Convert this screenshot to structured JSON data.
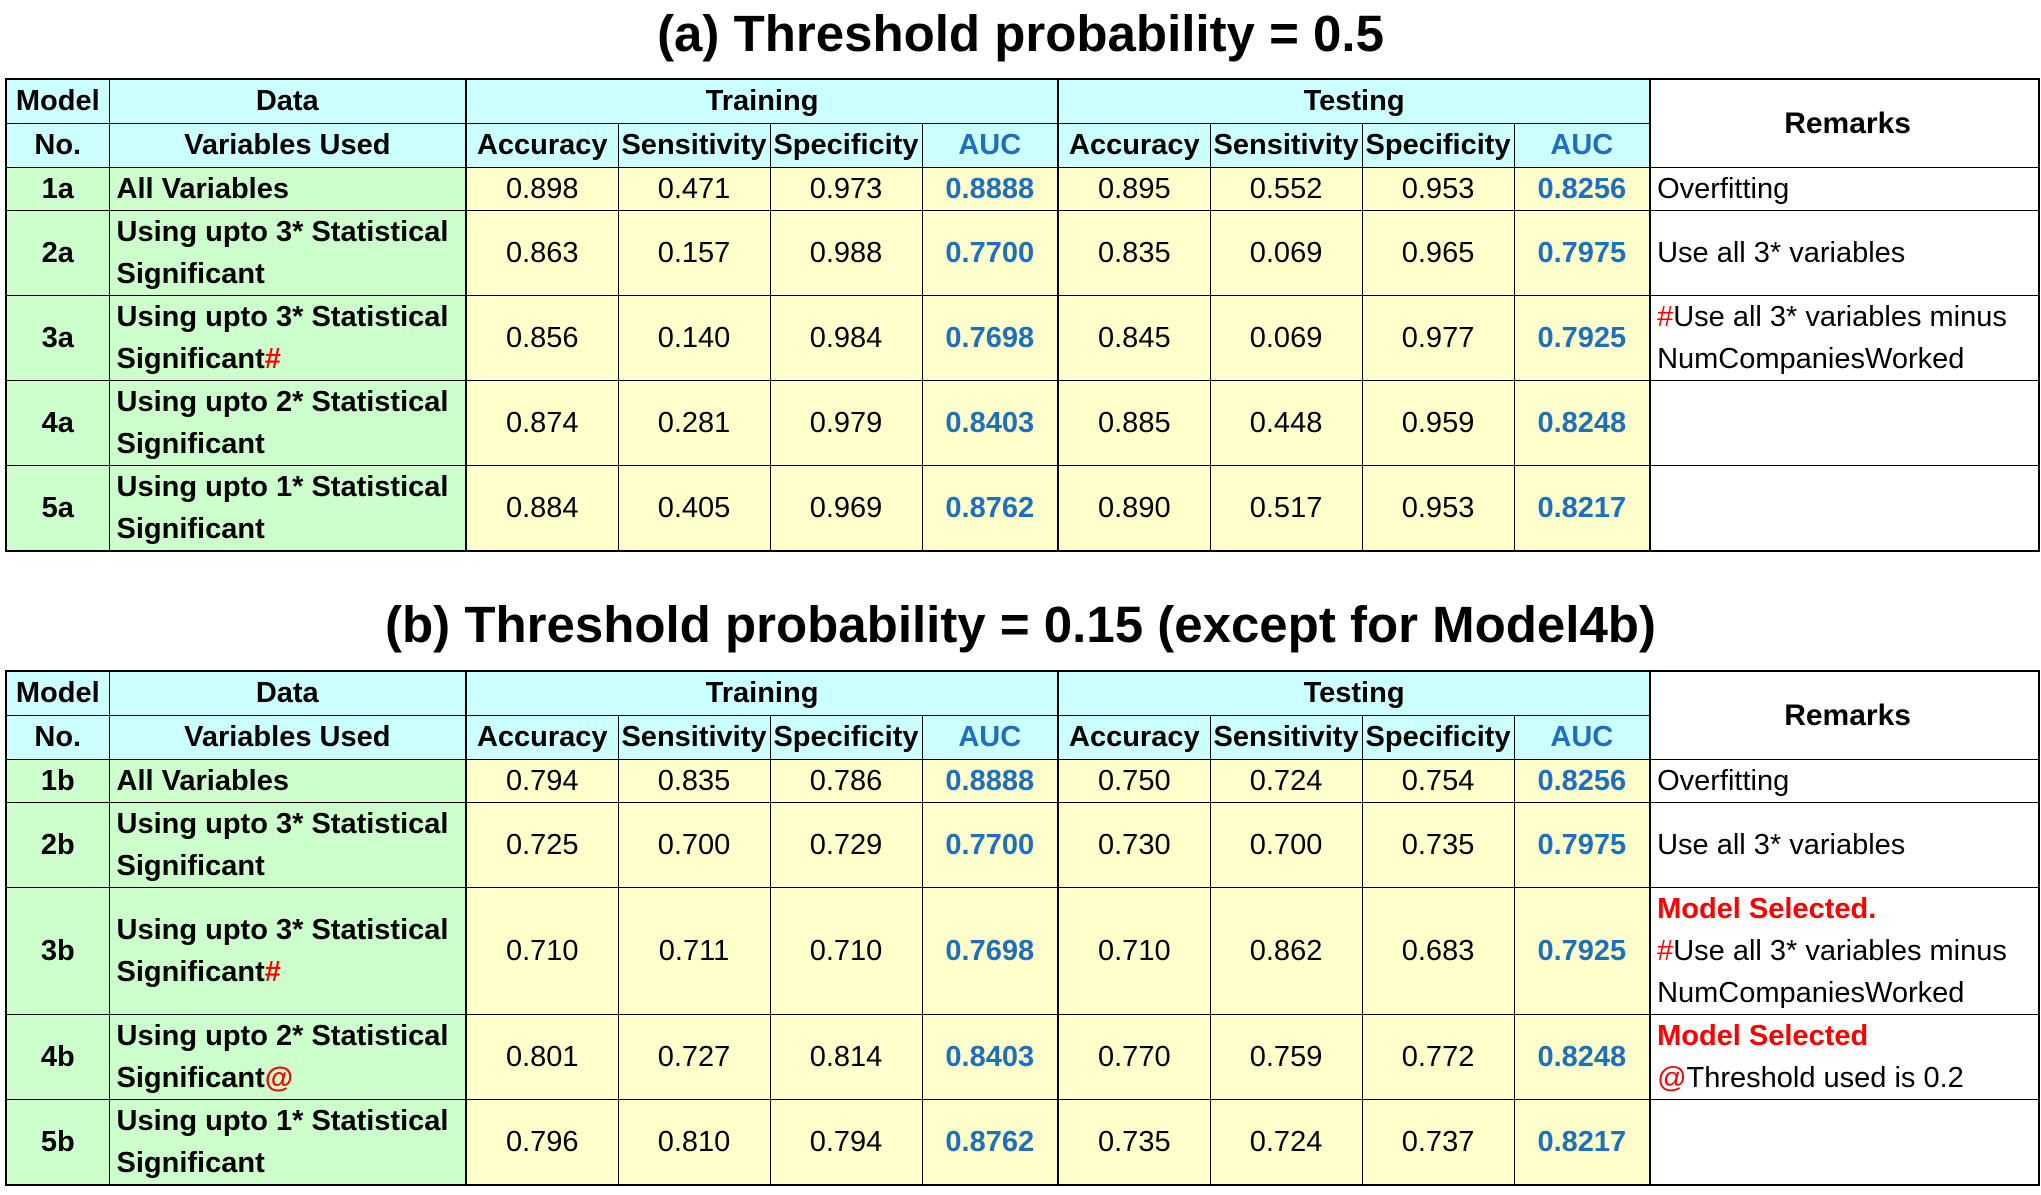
{
  "table_a": {
    "title": "(a) Threshold probability = 0.5",
    "headers": {
      "model_top": "Model",
      "model_bottom": "No.",
      "data_top": "Data",
      "data_bottom": "Variables Used",
      "training": "Training",
      "testing": "Testing",
      "remarks": "Remarks",
      "accuracy": "Accuracy",
      "sensitivity": "Sensitivity",
      "specificity": "Specificity",
      "auc": "AUC"
    },
    "rows": [
      {
        "id": "1a",
        "var": "All Variables",
        "var_mark": "",
        "tr_acc": "0.898",
        "tr_sens": "0.471",
        "tr_spec": "0.973",
        "tr_auc": "0.8888",
        "te_acc": "0.895",
        "te_sens": "0.552",
        "te_spec": "0.953",
        "te_auc": "0.8256",
        "remark_title": "",
        "remark_mark": "",
        "remark": "Overfitting"
      },
      {
        "id": "2a",
        "var": "Using upto 3* Statistical Significant",
        "var_mark": "",
        "tr_acc": "0.863",
        "tr_sens": "0.157",
        "tr_spec": "0.988",
        "tr_auc": "0.7700",
        "te_acc": "0.835",
        "te_sens": "0.069",
        "te_spec": "0.965",
        "te_auc": "0.7975",
        "remark_title": "",
        "remark_mark": "",
        "remark": "Use all 3* variables"
      },
      {
        "id": "3a",
        "var": "Using upto 3* Statistical Significant",
        "var_mark": "#",
        "tr_acc": "0.856",
        "tr_sens": "0.140",
        "tr_spec": "0.984",
        "tr_auc": "0.7698",
        "te_acc": "0.845",
        "te_sens": "0.069",
        "te_spec": "0.977",
        "te_auc": "0.7925",
        "remark_title": "",
        "remark_mark": "#",
        "remark": "Use all 3* variables minus NumCompaniesWorked"
      },
      {
        "id": "4a",
        "var": "Using upto 2* Statistical Significant",
        "var_mark": "",
        "tr_acc": "0.874",
        "tr_sens": "0.281",
        "tr_spec": "0.979",
        "tr_auc": "0.8403",
        "te_acc": "0.885",
        "te_sens": "0.448",
        "te_spec": "0.959",
        "te_auc": "0.8248",
        "remark_title": "",
        "remark_mark": "",
        "remark": ""
      },
      {
        "id": "5a",
        "var": "Using upto 1* Statistical Significant",
        "var_mark": "",
        "tr_acc": "0.884",
        "tr_sens": "0.405",
        "tr_spec": "0.969",
        "tr_auc": "0.8762",
        "te_acc": "0.890",
        "te_sens": "0.517",
        "te_spec": "0.953",
        "te_auc": "0.8217",
        "remark_title": "",
        "remark_mark": "",
        "remark": ""
      }
    ]
  },
  "table_b": {
    "title": "(b) Threshold probability = 0.15 (except for Model4b)",
    "headers": {
      "model_top": "Model",
      "model_bottom": "No.",
      "data_top": "Data",
      "data_bottom": "Variables Used",
      "training": "Training",
      "testing": "Testing",
      "remarks": "Remarks",
      "accuracy": "Accuracy",
      "sensitivity": "Sensitivity",
      "specificity": "Specificity",
      "auc": "AUC"
    },
    "rows": [
      {
        "id": "1b",
        "var": "All Variables",
        "var_mark": "",
        "tr_acc": "0.794",
        "tr_sens": "0.835",
        "tr_spec": "0.786",
        "tr_auc": "0.8888",
        "te_acc": "0.750",
        "te_sens": "0.724",
        "te_spec": "0.754",
        "te_auc": "0.8256",
        "remark_title": "",
        "remark_mark": "",
        "remark": "Overfitting"
      },
      {
        "id": "2b",
        "var": "Using upto 3* Statistical Significant",
        "var_mark": "",
        "tr_acc": "0.725",
        "tr_sens": "0.700",
        "tr_spec": "0.729",
        "tr_auc": "0.7700",
        "te_acc": "0.730",
        "te_sens": "0.700",
        "te_spec": "0.735",
        "te_auc": "0.7975",
        "remark_title": "",
        "remark_mark": "",
        "remark": "Use all 3* variables"
      },
      {
        "id": "3b",
        "var": "Using upto 3* Statistical Significant",
        "var_mark": "#",
        "tr_acc": "0.710",
        "tr_sens": "0.711",
        "tr_spec": "0.710",
        "tr_auc": "0.7698",
        "te_acc": "0.710",
        "te_sens": "0.862",
        "te_spec": "0.683",
        "te_auc": "0.7925",
        "remark_title": "Model Selected.",
        "remark_mark": "#",
        "remark": "Use all 3* variables minus NumCompaniesWorked"
      },
      {
        "id": "4b",
        "var": "Using upto 2* Statistical Significant",
        "var_mark": "@",
        "tr_acc": "0.801",
        "tr_sens": "0.727",
        "tr_spec": "0.814",
        "tr_auc": "0.8403",
        "te_acc": "0.770",
        "te_sens": "0.759",
        "te_spec": "0.772",
        "te_auc": "0.8248",
        "remark_title": "Model Selected",
        "remark_mark": "@",
        "remark": "Threshold used is 0.2"
      },
      {
        "id": "5b",
        "var": "Using upto 1* Statistical Significant",
        "var_mark": "",
        "tr_acc": "0.796",
        "tr_sens": "0.810",
        "tr_spec": "0.794",
        "tr_auc": "0.8762",
        "te_acc": "0.735",
        "te_sens": "0.724",
        "te_spec": "0.737",
        "te_auc": "0.8217",
        "remark_title": "",
        "remark_mark": "",
        "remark": ""
      }
    ]
  }
}
